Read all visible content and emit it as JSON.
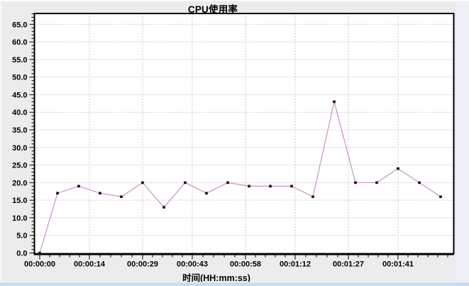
{
  "chart_data": {
    "type": "line",
    "title": "CPU使用率",
    "xlabel": "时间(HH:mm:ss)",
    "ylabel": "",
    "legend": "none",
    "grid": {
      "style": "dashed",
      "color": "#c9c9c9",
      "on": true
    },
    "x_axis": {
      "tick_labels": [
        "00:00:00",
        "00:00:14",
        "00:00:29",
        "00:00:43",
        "00:00:58",
        "00:01:12",
        "00:01:27",
        "00:01:41"
      ],
      "tick_seconds": [
        0,
        14,
        29,
        43,
        58,
        72,
        87,
        101
      ],
      "minor_ticks_per_interval": 4,
      "max_seconds": 116
    },
    "y_axis": {
      "tick_labels": [
        "0.0",
        "5.0",
        "10.0",
        "15.0",
        "20.0",
        "25.0",
        "30.0",
        "35.0",
        "40.0",
        "45.0",
        "50.0",
        "55.0",
        "60.0",
        "65.0"
      ],
      "tick_values": [
        0,
        5,
        10,
        15,
        20,
        25,
        30,
        35,
        40,
        45,
        50,
        55,
        60,
        65
      ],
      "minor_step": 1,
      "range": [
        0,
        68
      ]
    },
    "series": [
      {
        "name": "CPU使用率",
        "line_color": "#cc99cc",
        "marker": "square",
        "marker_color": "#111111",
        "x_seconds_estimated": [
          0,
          5,
          11,
          17,
          23,
          29,
          35,
          41,
          47,
          53,
          59,
          65,
          71,
          77,
          83,
          89,
          95,
          101,
          107,
          113
        ],
        "values": [
          0,
          17,
          19,
          17,
          16,
          20,
          13,
          20,
          17,
          20,
          19,
          19,
          19,
          16,
          43,
          20,
          20,
          24,
          20,
          16
        ]
      }
    ]
  },
  "colors": {
    "panel_bg": "#ececec",
    "plot_bg": "#ffffff",
    "axis": "#000000",
    "grid": "#c9c9c9",
    "line": "#cc99cc",
    "bottom_strip": "#cbdcf0"
  }
}
